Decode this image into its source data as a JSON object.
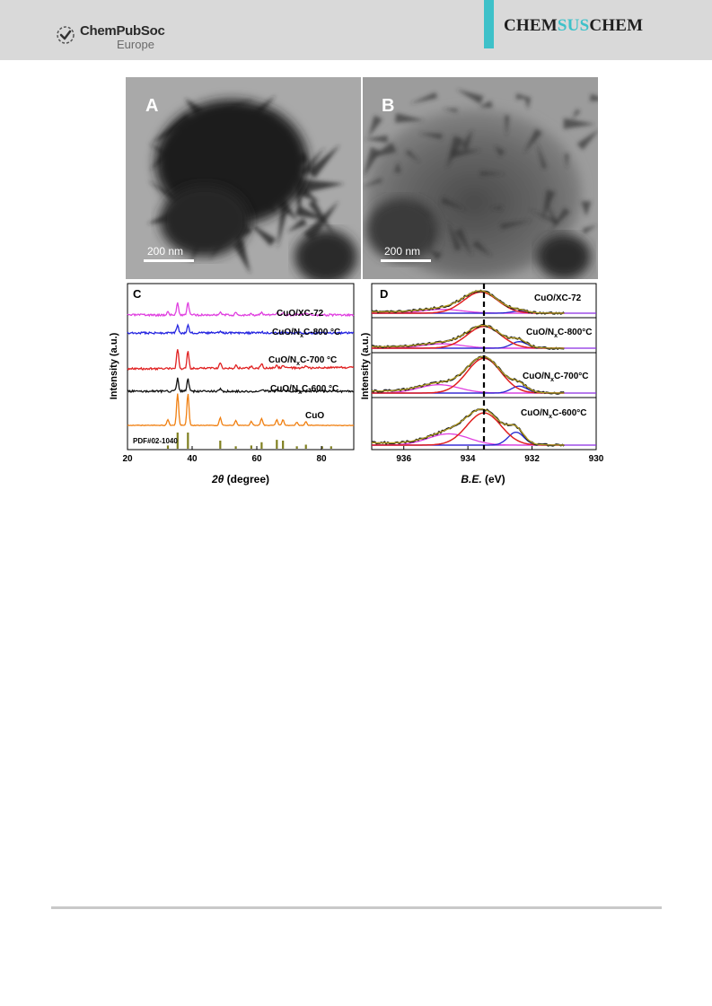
{
  "header": {
    "publisher_name": "ChemPubSoc",
    "publisher_sub": "Europe",
    "journal_part1": "CHEM",
    "journal_part2": "SUS",
    "journal_part3": "CHEM",
    "accent_color": "#3ec1c9"
  },
  "figure": {
    "panel_a": {
      "label": "A",
      "scale_bar": "200 nm"
    },
    "panel_b": {
      "label": "B",
      "scale_bar": "200 nm"
    },
    "panel_c": {
      "label": "C",
      "ylabel": "Intensity (a.u.)",
      "xlabel_italic": "2θ",
      "xlabel_rest": " (degree)",
      "reference": "PDF#02-1040",
      "series_labels": [
        "CuO/XC-72",
        "CuO/N",
        "CuO/N",
        "CuO/N",
        "CuO"
      ],
      "series_label_suffix": [
        "",
        "C-800 °C",
        "C-700 °C",
        "C-600 °C",
        ""
      ],
      "series_sub": [
        "",
        "x",
        "x",
        "x",
        ""
      ]
    },
    "panel_d": {
      "label": "D",
      "ylabel": "Intensity (a.u.)",
      "xlabel_italic": "B.E.",
      "xlabel_rest": " (eV)",
      "series_labels": [
        "CuO/XC-72",
        "CuO/N",
        "CuO/N",
        "CuO/N"
      ],
      "series_label_suffix": [
        "",
        "C-800°C",
        "C-700°C",
        "C-600°C"
      ],
      "series_sub": [
        "",
        "x",
        "x",
        "x"
      ]
    }
  },
  "chart_data": [
    {
      "type": "line",
      "panel": "C",
      "xlabel": "2θ (degree)",
      "ylabel": "Intensity (a.u.)",
      "xlim": [
        20,
        90
      ],
      "xticks": [
        20,
        40,
        60,
        80
      ],
      "series": [
        {
          "name": "CuO/XC-72",
          "color": "#e040e0",
          "peaks": [
            [
              32.5,
              0.25
            ],
            [
              35.5,
              1.0
            ],
            [
              38.7,
              1.0
            ],
            [
              48.7,
              0.25
            ],
            [
              53.5,
              0.15
            ],
            [
              58.3,
              0.15
            ],
            [
              61.5,
              0.2
            ],
            [
              66.2,
              0.2
            ],
            [
              68.1,
              0.2
            ],
            [
              72.4,
              0.1
            ],
            [
              75.2,
              0.15
            ]
          ]
        },
        {
          "name": "CuO/NxC-800 °C",
          "color": "#2424e0",
          "peaks": [
            [
              35.5,
              0.8
            ],
            [
              38.7,
              0.8
            ],
            [
              48.7,
              0.15
            ],
            [
              61.5,
              0.1
            ]
          ]
        },
        {
          "name": "CuO/NxC-700 °C",
          "color": "#e02020",
          "peaks": [
            [
              35.5,
              1.2
            ],
            [
              38.7,
              1.1
            ],
            [
              48.7,
              0.3
            ],
            [
              53.5,
              0.15
            ],
            [
              58.3,
              0.1
            ],
            [
              61.5,
              0.25
            ],
            [
              66.2,
              0.2
            ],
            [
              68.1,
              0.2
            ],
            [
              75.2,
              0.1
            ]
          ]
        },
        {
          "name": "CuO/NxC-600 °C",
          "color": "#111111",
          "peaks": [
            [
              35.5,
              1.0
            ],
            [
              38.7,
              1.0
            ],
            [
              48.7,
              0.2
            ],
            [
              61.5,
              0.15
            ],
            [
              66.2,
              0.1
            ],
            [
              68.1,
              0.1
            ]
          ]
        },
        {
          "name": "CuO",
          "color": "#f07f10",
          "peaks": [
            [
              32.5,
              0.3
            ],
            [
              35.5,
              1.6
            ],
            [
              38.7,
              1.6
            ],
            [
              48.7,
              0.4
            ],
            [
              53.5,
              0.25
            ],
            [
              58.3,
              0.2
            ],
            [
              61.5,
              0.35
            ],
            [
              66.2,
              0.3
            ],
            [
              68.1,
              0.3
            ],
            [
              72.4,
              0.15
            ],
            [
              75.2,
              0.2
            ]
          ]
        }
      ],
      "reference_peaks": {
        "name": "PDF#02-1040",
        "color": "#808020",
        "positions": [
          32.5,
          35.5,
          38.7,
          48.7,
          53.5,
          58.3,
          61.5,
          66.2,
          68.1,
          72.4,
          75.2,
          80.2,
          83.0
        ],
        "heights": [
          0.2,
          1.0,
          1.0,
          0.5,
          0.15,
          0.2,
          0.4,
          0.55,
          0.5,
          0.15,
          0.25,
          0.15,
          0.15
        ]
      }
    },
    {
      "type": "line",
      "panel": "D",
      "xlabel": "B.E. (eV)",
      "ylabel": "Intensity (a.u.)",
      "xlim": [
        937,
        930
      ],
      "xticks": [
        936,
        934,
        932,
        930
      ],
      "reference_line": 933.5,
      "spectra": [
        {
          "name": "CuO/XC-72",
          "main_peak": [
            933.6,
            1.0
          ],
          "shoulder": [
            934.8,
            0.18
          ],
          "low": [
            932.4,
            0.1
          ]
        },
        {
          "name": "CuO/NxC-800°C",
          "main_peak": [
            933.5,
            1.0
          ],
          "shoulder": [
            934.8,
            0.2
          ],
          "low": [
            932.4,
            0.3
          ]
        },
        {
          "name": "CuO/NxC-700°C",
          "main_peak": [
            933.5,
            1.25
          ],
          "shoulder": [
            934.9,
            0.3
          ],
          "low": [
            932.4,
            0.25
          ]
        },
        {
          "name": "CuO/NxC-600°C",
          "main_peak": [
            933.5,
            1.0
          ],
          "shoulder": [
            934.6,
            0.35
          ],
          "low": [
            932.5,
            0.4
          ]
        }
      ]
    }
  ]
}
